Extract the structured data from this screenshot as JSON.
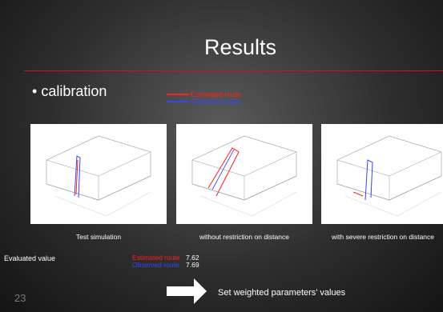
{
  "slide": {
    "title": "Results",
    "bullet": "calibration",
    "legend": [
      {
        "label": "Estimated route",
        "color": "#ff2020"
      },
      {
        "label": "Observed route",
        "color": "#3344ff"
      }
    ],
    "figures": [
      {
        "caption": "Test simulation"
      },
      {
        "caption": "without restriction on distance"
      },
      {
        "caption": "with severe restriction on distance"
      }
    ],
    "evaluation": {
      "label": "Evaluated value",
      "rows": [
        {
          "name": "Estimated route",
          "value": "7.62"
        },
        {
          "name": "Observed route",
          "value": "7.69"
        }
      ]
    },
    "note": "Set weighted parameters’ values",
    "slide_number": "23"
  }
}
